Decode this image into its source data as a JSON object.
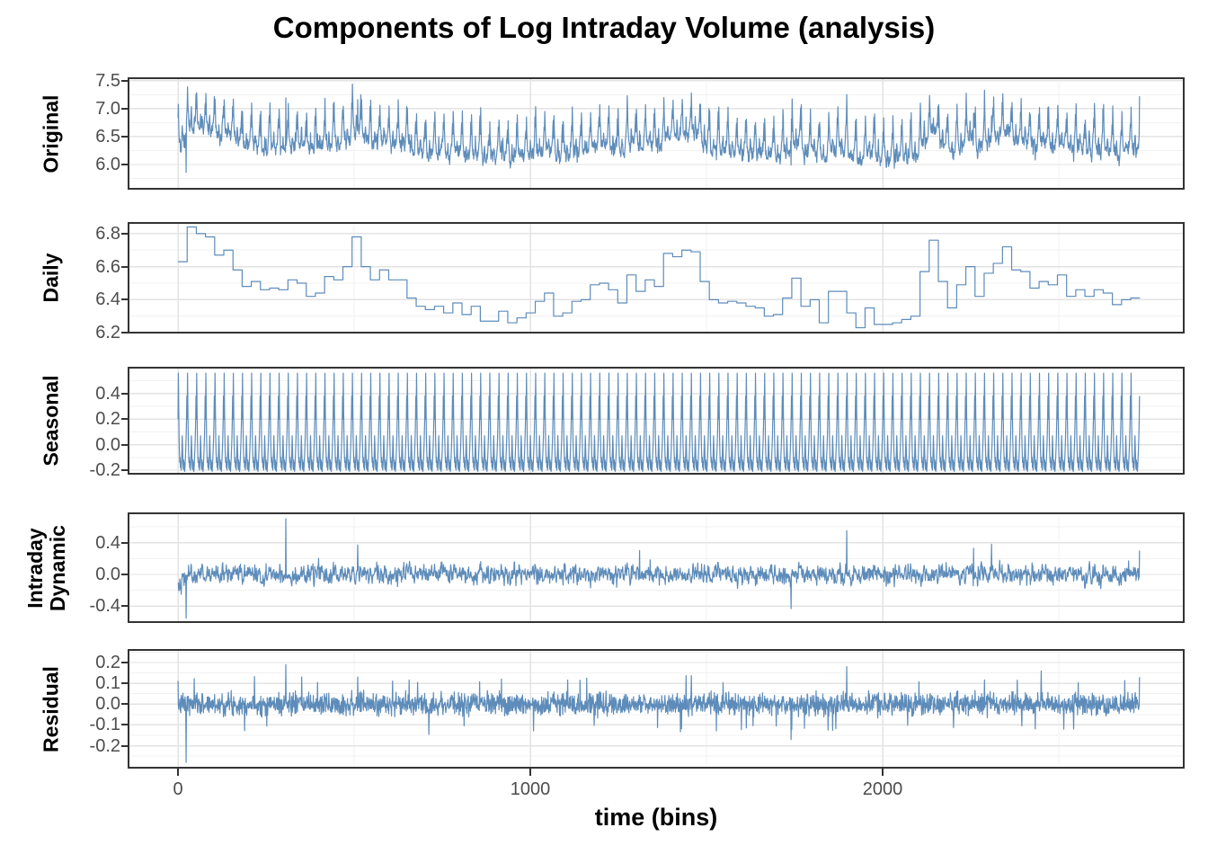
{
  "chart_data": {
    "type": "line",
    "title": "Components of Log Intraday Volume (analysis)",
    "xlabel": "time (bins)",
    "x_ticks": [
      0,
      1000,
      2000
    ],
    "x_minor_ticks": [
      500,
      1500,
      2500
    ],
    "xlim": [
      -143,
      2857
    ],
    "n_bins": 2730,
    "bins_per_day": 26,
    "n_days": 105,
    "line_color": "#5d8cba",
    "grid_major_color": "#e3e3e3",
    "grid_minor_color": "#f1f1f1",
    "border_color": "#333333",
    "tick_label_color": "#4d4d4d",
    "legend": "none",
    "grid": "on",
    "panels": [
      {
        "label": "Original",
        "label_lines": [
          "Original"
        ],
        "series": "original",
        "yticks": [
          6.0,
          6.5,
          7.0,
          7.5
        ],
        "ylim": [
          5.55,
          7.56
        ],
        "tick_decimals": 1
      },
      {
        "label": "Daily",
        "label_lines": [
          "Daily"
        ],
        "series": "daily_steps",
        "yticks": [
          6.2,
          6.4,
          6.6,
          6.8
        ],
        "ylim": [
          6.195,
          6.87
        ],
        "tick_decimals": 1
      },
      {
        "label": "Seasonal",
        "label_lines": [
          "Seasonal"
        ],
        "series": "seasonal_profile",
        "yticks": [
          -0.2,
          0.0,
          0.2,
          0.4
        ],
        "ylim": [
          -0.235,
          0.61
        ],
        "tick_decimals": 1
      },
      {
        "label": "Intraday Dynamic",
        "label_lines": [
          "Intraday",
          "Dynamic"
        ],
        "series": "dynamic",
        "yticks": [
          -0.4,
          0.0,
          0.4
        ],
        "ylim": [
          -0.61,
          0.78
        ],
        "tick_decimals": 1
      },
      {
        "label": "Residual",
        "label_lines": [
          "Residual"
        ],
        "series": "residual",
        "yticks": [
          -0.2,
          -0.1,
          0.0,
          0.1,
          0.2
        ],
        "ylim": [
          -0.31,
          0.265
        ],
        "tick_decimals": 1
      }
    ],
    "daily_steps": [
      6.63,
      6.84,
      6.8,
      6.78,
      6.67,
      6.7,
      6.58,
      6.48,
      6.51,
      6.46,
      6.47,
      6.46,
      6.52,
      6.5,
      6.42,
      6.44,
      6.54,
      6.52,
      6.6,
      6.78,
      6.6,
      6.52,
      6.58,
      6.52,
      6.52,
      6.41,
      6.36,
      6.34,
      6.36,
      6.32,
      6.38,
      6.31,
      6.36,
      6.27,
      6.27,
      6.33,
      6.26,
      6.29,
      6.32,
      6.39,
      6.44,
      6.3,
      6.32,
      6.39,
      6.4,
      6.49,
      6.5,
      6.46,
      6.38,
      6.55,
      6.45,
      6.52,
      6.48,
      6.68,
      6.66,
      6.7,
      6.69,
      6.51,
      6.4,
      6.38,
      6.39,
      6.38,
      6.36,
      6.35,
      6.3,
      6.31,
      6.41,
      6.53,
      6.36,
      6.4,
      6.26,
      6.45,
      6.45,
      6.32,
      6.23,
      6.35,
      6.25,
      6.25,
      6.26,
      6.28,
      6.3,
      6.57,
      6.76,
      6.51,
      6.35,
      6.49,
      6.6,
      6.42,
      6.56,
      6.62,
      6.72,
      6.58,
      6.57,
      6.47,
      6.51,
      6.49,
      6.55,
      6.42,
      6.46,
      6.42,
      6.46,
      6.44,
      6.37,
      6.4,
      6.41
    ],
    "seasonal_profile": [
      0.2,
      0.56,
      0.3,
      0.06,
      -0.06,
      -0.14,
      -0.1,
      -0.18,
      -0.13,
      -0.2,
      -0.15,
      -0.06,
      0.07,
      -0.03,
      -0.13,
      -0.19,
      -0.12,
      -0.2,
      -0.14,
      -0.21,
      -0.16,
      -0.1,
      -0.03,
      0.06,
      0.18,
      0.38
    ],
    "dynamic": {
      "baseline": 0.0,
      "noise_sd": 0.055,
      "ar": 0.45,
      "start_offset": -0.05,
      "seed": 42,
      "spikes": [
        {
          "bin": 23,
          "value": -0.55
        },
        {
          "bin": 306,
          "value": 0.7
        },
        {
          "bin": 510,
          "value": 0.37
        },
        {
          "bin": 1310,
          "value": 0.3
        },
        {
          "bin": 1740,
          "value": -0.43
        },
        {
          "bin": 1898,
          "value": 0.55
        },
        {
          "bin": 2258,
          "value": 0.33
        },
        {
          "bin": 2309,
          "value": 0.38
        },
        {
          "bin": 2729,
          "value": 0.3
        }
      ]
    },
    "residual": {
      "baseline": 0.0,
      "noise_sd": 0.027,
      "seed": 7,
      "spikes": [
        {
          "bin": 23,
          "value": -0.28
        },
        {
          "bin": 306,
          "value": 0.19
        },
        {
          "bin": 510,
          "value": 0.13
        },
        {
          "bin": 1740,
          "value": -0.17
        },
        {
          "bin": 1898,
          "value": 0.18
        },
        {
          "bin": 2450,
          "value": 0.16
        },
        {
          "bin": 2729,
          "value": 0.13
        }
      ]
    }
  }
}
